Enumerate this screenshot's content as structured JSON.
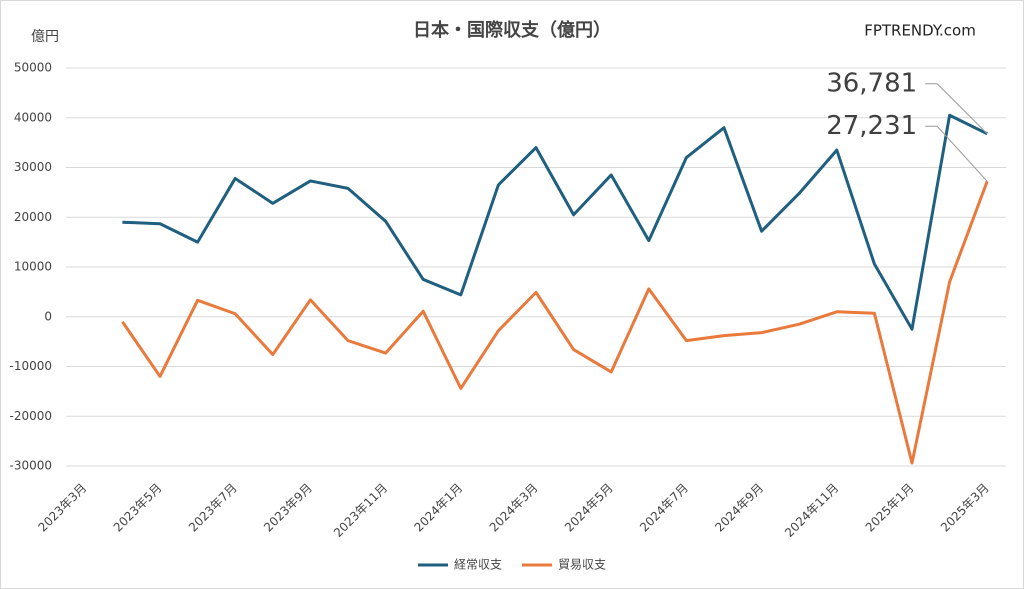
{
  "chart_data": {
    "type": "line",
    "title": "日本・国際収支（億円）",
    "ylabel": "億円",
    "watermark": "FPTRENDY.com",
    "categories": [
      "2023年3月",
      null,
      "2023年5月",
      null,
      "2023年7月",
      null,
      "2023年9月",
      null,
      "2023年11月",
      null,
      "2024年1月",
      null,
      "2024年3月",
      null,
      "2024年5月",
      null,
      "2024年7月",
      null,
      "2024年9月",
      null,
      "2024年11月",
      null,
      "2025年1月",
      null,
      "2025年3月"
    ],
    "series": [
      {
        "name": "経常収支",
        "color": "#1f5f7f",
        "values": [
          null,
          19000,
          18700,
          15000,
          27800,
          22800,
          27300,
          25800,
          19200,
          7500,
          4400,
          26500,
          34000,
          20500,
          28500,
          15300,
          32000,
          38000,
          17200,
          24800,
          33500,
          10600,
          -2500,
          40500,
          36781
        ],
        "value_labels": [
          null,
          null,
          null,
          null,
          null,
          null,
          null,
          null,
          null,
          null,
          null,
          null,
          null,
          null,
          null,
          null,
          null,
          null,
          null,
          null,
          null,
          null,
          null,
          null,
          "36,781"
        ]
      },
      {
        "name": "貿易収支",
        "color": "#e97a3c",
        "values": [
          null,
          -1000,
          -12000,
          3300,
          600,
          -7600,
          3400,
          -4800,
          -7300,
          1100,
          -14400,
          -2800,
          4900,
          -6600,
          -11100,
          5600,
          -4800,
          -3800,
          -3200,
          -1500,
          1000,
          700,
          -29400,
          7000,
          27231
        ],
        "value_labels": [
          null,
          null,
          null,
          null,
          null,
          null,
          null,
          null,
          null,
          null,
          null,
          null,
          null,
          null,
          null,
          null,
          null,
          null,
          null,
          null,
          null,
          null,
          null,
          null,
          "27,231"
        ]
      }
    ],
    "ylim": [
      -30000,
      50000
    ],
    "yticks": [
      -30000,
      -20000,
      -10000,
      0,
      10000,
      20000,
      30000,
      40000,
      50000
    ],
    "grid": true,
    "legend": "bottom"
  }
}
